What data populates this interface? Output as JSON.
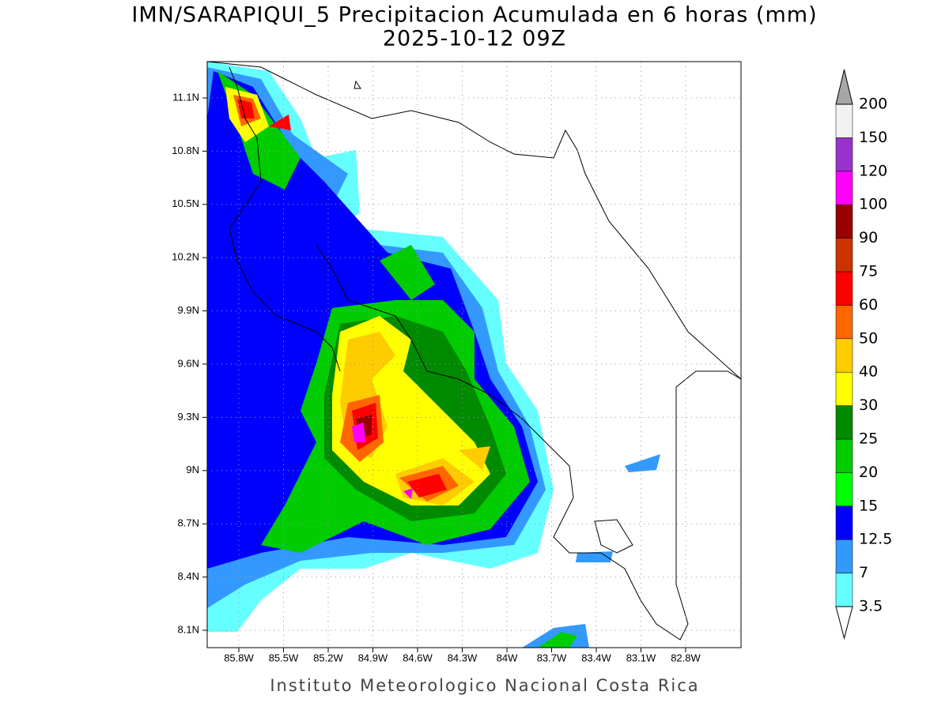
{
  "header": {
    "title": "IMN/SARAPIQUI_5 Precipitacion Acumulada en 6 horas (mm)",
    "subtitle": "2025-10-12 09Z"
  },
  "map": {
    "lon_ticks": [
      "85.8W",
      "85.5W",
      "85.2W",
      "84.9W",
      "84.6W",
      "84.3W",
      "84W",
      "83.7W",
      "83.4W",
      "83.1W",
      "82.8W"
    ],
    "lat_ticks": [
      "11.1N",
      "10.8N",
      "10.5N",
      "10.2N",
      "9.9N",
      "9.6N",
      "9.3N",
      "9N",
      "8.7N",
      "8.4N",
      "8.1N"
    ]
  },
  "colorbar": {
    "levels": [
      3.5,
      7,
      12.5,
      15,
      20,
      25,
      30,
      40,
      50,
      60,
      75,
      90,
      100,
      120,
      150,
      200
    ],
    "colors": [
      "#66ffff",
      "#3399ff",
      "#0000ff",
      "#00ff00",
      "#00cc00",
      "#008a00",
      "#ffff00",
      "#ffcc00",
      "#ff6600",
      "#ff0000",
      "#cc3300",
      "#990000",
      "#ff00ff",
      "#9933cc",
      "#f2f2f2"
    ],
    "over_color": "#a6a6a6",
    "under_color": "#ffffff"
  },
  "footer": {
    "credit": "Instituto Meteorologico Nacional Costa Rica"
  }
}
